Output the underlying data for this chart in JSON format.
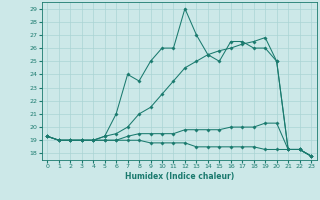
{
  "xlabel": "Humidex (Indice chaleur)",
  "bg_color": "#cce8e8",
  "line_color": "#1a7a6e",
  "grid_color": "#aad4d4",
  "xlim": [
    -0.5,
    23.5
  ],
  "ylim": [
    17.5,
    29.5
  ],
  "yticks": [
    18,
    19,
    20,
    21,
    22,
    23,
    24,
    25,
    26,
    27,
    28,
    29
  ],
  "xticks": [
    0,
    1,
    2,
    3,
    4,
    5,
    6,
    7,
    8,
    9,
    10,
    11,
    12,
    13,
    14,
    15,
    16,
    17,
    18,
    19,
    20,
    21,
    22,
    23
  ],
  "lines": [
    {
      "x": [
        0,
        1,
        2,
        3,
        4,
        5,
        6,
        7,
        8,
        9,
        10,
        11,
        12,
        13,
        14,
        15,
        16,
        17,
        18,
        19,
        20,
        21,
        22,
        23
      ],
      "y": [
        19.3,
        19.0,
        19.0,
        19.0,
        19.0,
        19.3,
        21.0,
        24.0,
        23.5,
        25.0,
        26.0,
        26.0,
        29.0,
        27.0,
        25.5,
        25.0,
        26.5,
        26.5,
        26.0,
        26.0,
        25.0,
        18.3,
        18.3,
        17.8
      ]
    },
    {
      "x": [
        0,
        1,
        2,
        3,
        4,
        5,
        6,
        7,
        8,
        9,
        10,
        11,
        12,
        13,
        14,
        15,
        16,
        17,
        18,
        19,
        20,
        21,
        22,
        23
      ],
      "y": [
        19.3,
        19.0,
        19.0,
        19.0,
        19.0,
        19.3,
        19.5,
        20.0,
        21.0,
        21.5,
        22.5,
        23.5,
        24.5,
        25.0,
        25.5,
        25.8,
        26.0,
        26.3,
        26.5,
        26.8,
        25.0,
        18.3,
        18.3,
        17.8
      ]
    },
    {
      "x": [
        0,
        1,
        2,
        3,
        4,
        5,
        6,
        7,
        8,
        9,
        10,
        11,
        12,
        13,
        14,
        15,
        16,
        17,
        18,
        19,
        20,
        21,
        22,
        23
      ],
      "y": [
        19.3,
        19.0,
        19.0,
        19.0,
        19.0,
        19.0,
        19.0,
        19.3,
        19.5,
        19.5,
        19.5,
        19.5,
        19.8,
        19.8,
        19.8,
        19.8,
        20.0,
        20.0,
        20.0,
        20.3,
        20.3,
        18.3,
        18.3,
        17.8
      ]
    },
    {
      "x": [
        0,
        1,
        2,
        3,
        4,
        5,
        6,
        7,
        8,
        9,
        10,
        11,
        12,
        13,
        14,
        15,
        16,
        17,
        18,
        19,
        20,
        21,
        22,
        23
      ],
      "y": [
        19.3,
        19.0,
        19.0,
        19.0,
        19.0,
        19.0,
        19.0,
        19.0,
        19.0,
        18.8,
        18.8,
        18.8,
        18.8,
        18.5,
        18.5,
        18.5,
        18.5,
        18.5,
        18.5,
        18.3,
        18.3,
        18.3,
        18.3,
        17.8
      ]
    }
  ]
}
